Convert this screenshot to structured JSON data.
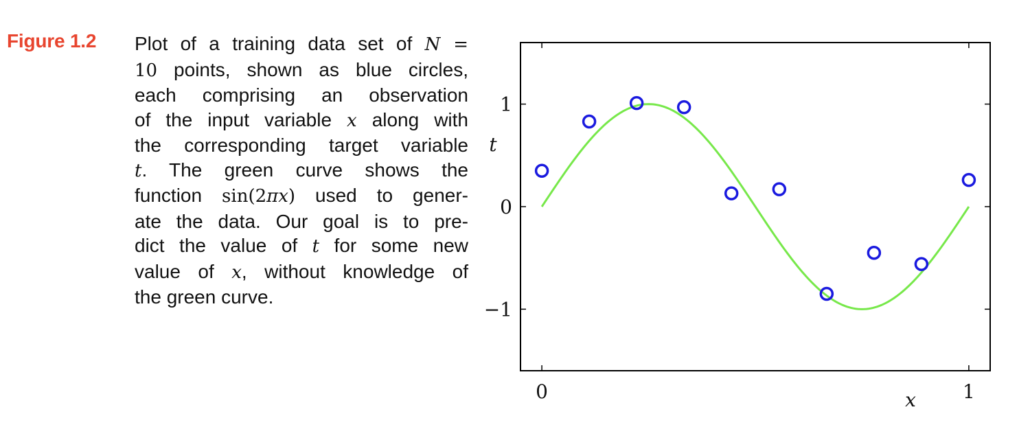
{
  "figure": {
    "label": "Figure 1.2",
    "caption_lines": [
      [
        "Plot of a training data set of ",
        {
          "m": "N ="
        }
      ],
      [
        {
          "mr": "10"
        },
        " points, shown as blue circles,"
      ],
      [
        "each comprising an observation"
      ],
      [
        "of the input variable ",
        {
          "m": "x"
        },
        " along with"
      ],
      [
        "the corresponding target variable"
      ],
      [
        {
          "m": "t"
        },
        ".   The green curve shows the"
      ],
      [
        "function ",
        {
          "mr": "sin(2"
        },
        {
          "m": "πx"
        },
        {
          "mr": ")"
        },
        " used to gener-"
      ],
      [
        "ate the data.  Our goal is to pre-"
      ],
      [
        "dict the value of ",
        {
          "m": "t"
        },
        " for some new"
      ],
      [
        "value of ",
        {
          "m": "x"
        },
        ", without knowledge of"
      ],
      [
        "the green curve."
      ]
    ]
  },
  "chart_data": {
    "type": "scatter",
    "xlabel": "x",
    "ylabel": "t",
    "xlim": [
      -0.05,
      1.05
    ],
    "ylim": [
      -1.6,
      1.6
    ],
    "x_ticks": [
      {
        "value": 0,
        "label": "0"
      },
      {
        "value": 1,
        "label": "1"
      }
    ],
    "y_ticks": [
      {
        "value": -1,
        "label": "−1"
      },
      {
        "value": 0,
        "label": "0"
      },
      {
        "value": 1,
        "label": "1"
      }
    ],
    "series": [
      {
        "kind": "points",
        "color": "#1a1adf",
        "x": [
          0.0,
          0.111,
          0.222,
          0.333,
          0.444,
          0.556,
          0.667,
          0.778,
          0.889,
          1.0
        ],
        "y": [
          0.35,
          0.83,
          1.01,
          0.97,
          0.13,
          0.17,
          -0.85,
          -0.45,
          -0.56,
          0.26
        ]
      },
      {
        "kind": "curve",
        "color": "#77e84a",
        "function": "sin(2πx)",
        "x_range": [
          0,
          1
        ]
      }
    ]
  }
}
